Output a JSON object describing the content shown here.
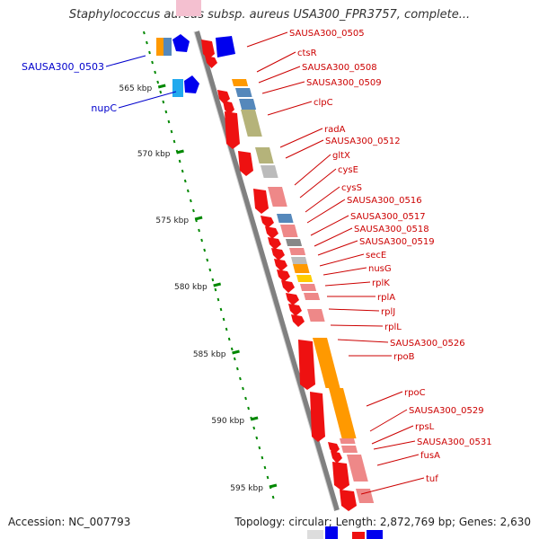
{
  "title": "Staphylococcus aureus subsp. aureus USA300_FPR3757, complete...",
  "footer": {
    "accession": "Accession: NC_007793",
    "summary": "Topology: circular; Length: 2,872,769 bp; Genes: 2,630"
  },
  "scale_labels": [
    "565 kbp",
    "570 kbp",
    "575 kbp",
    "580 kbp",
    "585 kbp",
    "590 kbp",
    "595 kbp"
  ],
  "genes_left": [
    {
      "name": "SAUSA300_0503",
      "color": "#0000cc"
    },
    {
      "name": "nupC",
      "color": "#0000cc"
    }
  ],
  "genes_right": [
    "SAUSA300_0505",
    "ctsR",
    "SAUSA300_0508",
    "SAUSA300_0509",
    "clpC",
    "radA",
    "SAUSA300_0512",
    "gltX",
    "cysE",
    "cysS",
    "SAUSA300_0516",
    "SAUSA300_0517",
    "SAUSA300_0518",
    "SAUSA300_0519",
    "secE",
    "nusG",
    "rplK",
    "rplA",
    "rplJ",
    "rplL",
    "SAUSA300_0526",
    "rpoB",
    "rpoC",
    "SAUSA300_0529",
    "rpsL",
    "SAUSA300_0531",
    "fusA",
    "tuf"
  ],
  "colors": {
    "forward_gene": "#ee1111",
    "reverse_gene": "#0000ee",
    "label_right": "#cc0000",
    "label_left": "#0000cc",
    "backbone": "#808080",
    "gc_skew_dots": "#008800",
    "cog_orange": "#ff9900",
    "cog_khaki": "#b5b37a",
    "cog_pink": "#ee8888",
    "cog_steel": "#5588bb",
    "cog_grey": "#bbbbbb"
  }
}
